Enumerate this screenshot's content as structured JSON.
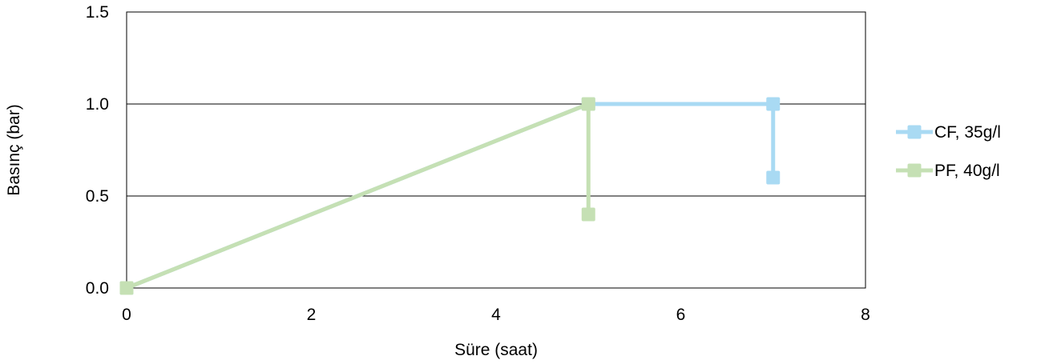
{
  "chart_data": {
    "type": "line",
    "xlabel": "Süre (saat)",
    "ylabel": "Basınç (bar)",
    "xlim": [
      0,
      8
    ],
    "ylim": [
      0,
      1.5
    ],
    "x_ticks": [
      0,
      2,
      4,
      6,
      8
    ],
    "x_tick_labels": [
      "0",
      "2",
      "4",
      "6",
      "8"
    ],
    "y_ticks": [
      0,
      0.5,
      1.0,
      1.5
    ],
    "y_tick_labels": [
      "0.0",
      "0.5",
      "1.0",
      "1.5"
    ],
    "grid": "horizontal",
    "legend_position": "right",
    "series": [
      {
        "name": "CF, 35g/l",
        "color": "#a9daf3",
        "marker": "square",
        "points": [
          {
            "x": 0,
            "y": 0
          },
          {
            "x": 5,
            "y": 1.0
          },
          {
            "x": 7,
            "y": 1.0
          },
          {
            "x": 7,
            "y": 0.6
          }
        ]
      },
      {
        "name": "PF, 40g/l",
        "color": "#c5e0b4",
        "marker": "square",
        "points": [
          {
            "x": 0,
            "y": 0
          },
          {
            "x": 5,
            "y": 1.0
          },
          {
            "x": 5,
            "y": 0.4
          }
        ]
      }
    ]
  }
}
